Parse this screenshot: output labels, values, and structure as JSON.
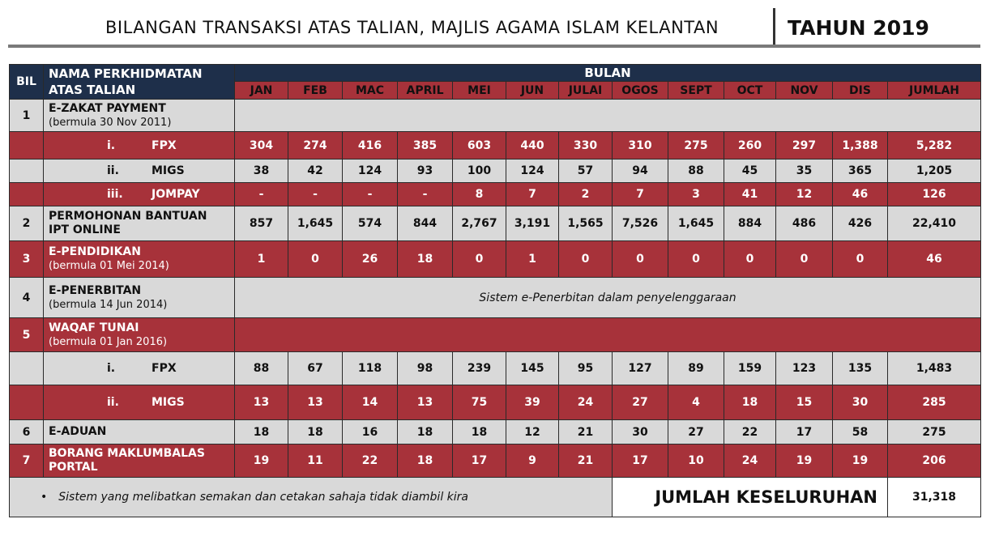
{
  "title": "BILANGAN TRANSAKSI ATAS TALIAN, MAJLIS AGAMA ISLAM KELANTAN",
  "year": "TAHUN 2019",
  "header": {
    "bil": "BIL",
    "service_line1": "NAMA PERKHIDMATAN",
    "service_line2": "ATAS TALIAN",
    "bulan": "BULAN",
    "months": [
      "JAN",
      "FEB",
      "MAC",
      "APRIL",
      "MEI",
      "JUN",
      "JULAI",
      "OGOS",
      "SEPT",
      "OCT",
      "NOV",
      "DIS",
      "JUMLAH"
    ]
  },
  "rows": [
    {
      "bil": "1",
      "name": "E-ZAKAT PAYMENT",
      "sub": "(bermula 30 Nov 2011)"
    },
    {
      "roman": "i.",
      "name": "FPX",
      "values": [
        "304",
        "274",
        "416",
        "385",
        "603",
        "440",
        "330",
        "310",
        "275",
        "260",
        "297",
        "1,388",
        "5,282"
      ]
    },
    {
      "roman": "ii.",
      "name": "MIGS",
      "values": [
        "38",
        "42",
        "124",
        "93",
        "100",
        "124",
        "57",
        "94",
        "88",
        "45",
        "35",
        "365",
        "1,205"
      ]
    },
    {
      "roman": "iii.",
      "name": "JOMPAY",
      "values": [
        "-",
        "-",
        "-",
        "-",
        "8",
        "7",
        "2",
        "7",
        "3",
        "41",
        "12",
        "46",
        "126"
      ]
    },
    {
      "bil": "2",
      "name": "PERMOHONAN BANTUAN",
      "name2": "IPT ONLINE",
      "values": [
        "857",
        "1,645",
        "574",
        "844",
        "2,767",
        "3,191",
        "1,565",
        "7,526",
        "1,645",
        "884",
        "486",
        "426",
        "22,410"
      ]
    },
    {
      "bil": "3",
      "name": "E-PENDIDIKAN",
      "sub": "(bermula 01 Mei 2014)",
      "values": [
        "1",
        "0",
        "26",
        "18",
        "0",
        "1",
        "0",
        "0",
        "0",
        "0",
        "0",
        "0",
        "46"
      ]
    },
    {
      "bil": "4",
      "name": "E-PENERBITAN",
      "sub": "(bermula 14 Jun 2014)",
      "note": "Sistem e-Penerbitan dalam penyelenggaraan"
    },
    {
      "bil": "5",
      "name": "WAQAF TUNAI",
      "sub": "(bermula 01 Jan 2016)"
    },
    {
      "roman": "i.",
      "name": "FPX",
      "values": [
        "88",
        "67",
        "118",
        "98",
        "239",
        "145",
        "95",
        "127",
        "89",
        "159",
        "123",
        "135",
        "1,483"
      ]
    },
    {
      "roman": "ii.",
      "name": "MIGS",
      "values": [
        "13",
        "13",
        "14",
        "13",
        "75",
        "39",
        "24",
        "27",
        "4",
        "18",
        "15",
        "30",
        "285"
      ]
    },
    {
      "bil": "6",
      "name": "E-ADUAN",
      "values": [
        "18",
        "18",
        "16",
        "18",
        "18",
        "12",
        "21",
        "30",
        "27",
        "22",
        "17",
        "58",
        "275"
      ]
    },
    {
      "bil": "7",
      "name": "BORANG MAKLUMBALAS",
      "name2": "PORTAL",
      "values": [
        "19",
        "11",
        "22",
        "18",
        "17",
        "9",
        "21",
        "17",
        "10",
        "24",
        "19",
        "19",
        "206"
      ]
    }
  ],
  "footer": {
    "bullet": "•",
    "note": "Sistem yang melibatkan semakan dan cetakan sahaja tidak diambil kira",
    "total_label": "JUMLAH KESELURUHAN",
    "total_value": "31,318"
  },
  "colors": {
    "navy": "#1e2f4a",
    "red": "#a7323a",
    "grey": "#d9d9d9"
  }
}
